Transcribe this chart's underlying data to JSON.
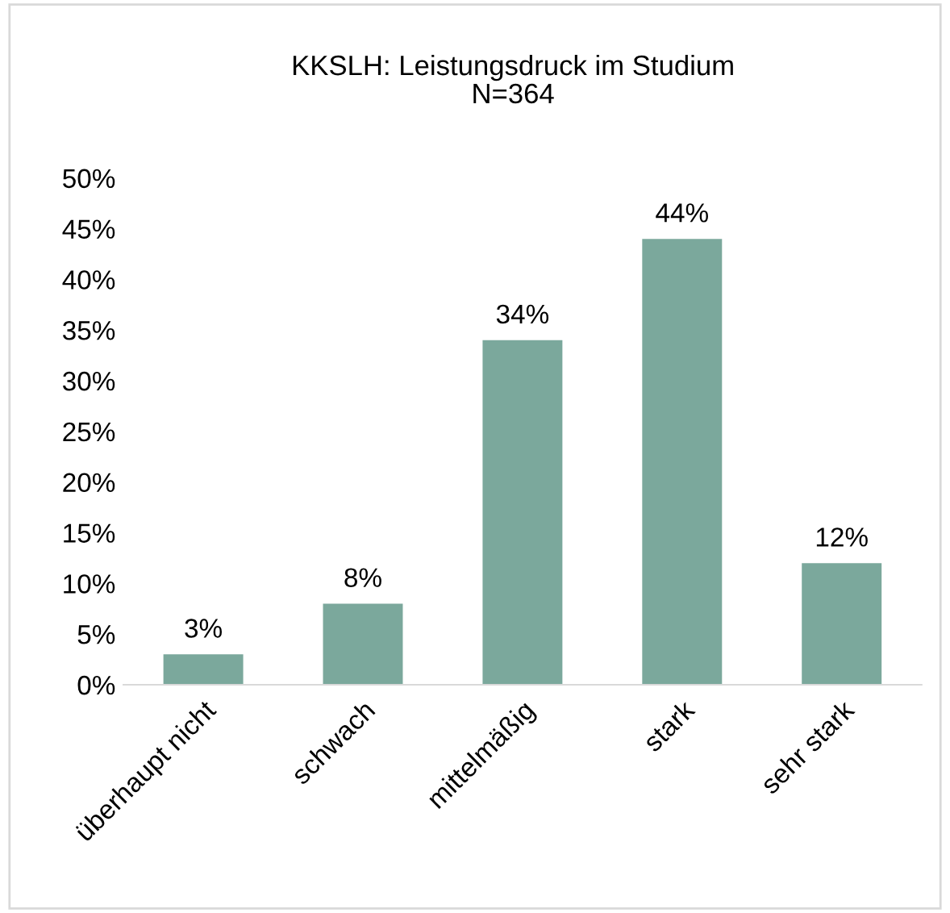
{
  "chart_data": {
    "type": "bar",
    "title": "KKSLH: Leistungsdruck im Studium\nN=364",
    "categories": [
      "überhaupt nicht",
      "schwach",
      "mittelmäßig",
      "stark",
      "sehr stark"
    ],
    "values": [
      3,
      8,
      34,
      44,
      12
    ],
    "color": "#7ba89c",
    "ylim": [
      0,
      50
    ],
    "yticks": [
      {
        "value": 0,
        "label": "0%"
      },
      {
        "value": 5,
        "label": "5%"
      },
      {
        "value": 10,
        "label": "10%"
      },
      {
        "value": 15,
        "label": "15%"
      },
      {
        "value": 20,
        "label": "20%"
      },
      {
        "value": 25,
        "label": "25%"
      },
      {
        "value": 30,
        "label": "30%"
      },
      {
        "value": 35,
        "label": "35%"
      },
      {
        "value": 40,
        "label": "40%"
      },
      {
        "value": 45,
        "label": "45%"
      },
      {
        "value": 50,
        "label": "50%"
      }
    ],
    "value_labels": [
      "3%",
      "8%",
      "34%",
      "44%",
      "12%"
    ],
    "grid": false,
    "legend": false
  }
}
